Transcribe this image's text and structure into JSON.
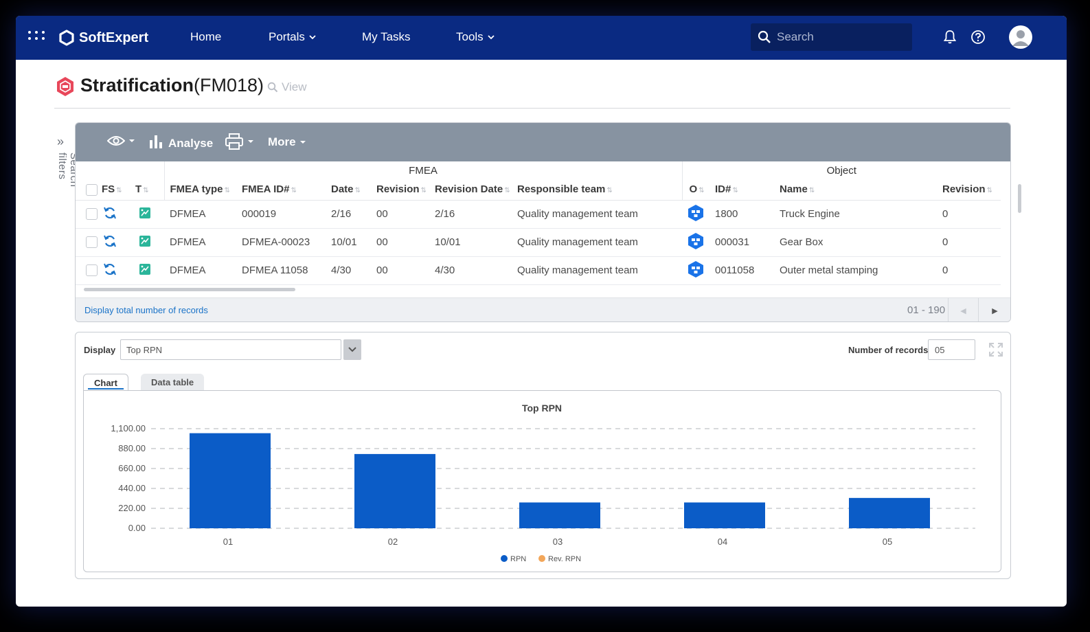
{
  "nav": {
    "logo": "SoftExpert",
    "items": [
      {
        "label": "Home"
      },
      {
        "label": "Portals"
      },
      {
        "label": "My Tasks"
      },
      {
        "label": "Tools"
      }
    ],
    "search_placeholder": "Search"
  },
  "header": {
    "title": "Stratification",
    "code": "(FM018)",
    "view_label": "View"
  },
  "side": {
    "search_filters": "Search filters"
  },
  "toolbar": {
    "analyse": "Analyse",
    "more": "More"
  },
  "grid": {
    "group_fmea": "FMEA",
    "group_object": "Object",
    "columns": [
      "FS",
      "T",
      "FMEA type",
      "FMEA ID#",
      "Date",
      "Revision",
      "Revision Date",
      "Responsible team",
      "O",
      "ID#",
      "Name",
      "Revision"
    ],
    "rows": [
      {
        "type": "DFMEA",
        "fmea_id": "000019",
        "date": "2/16",
        "revision": "00",
        "rev_date": "2/16",
        "team": "Quality management team",
        "obj_id": "1800",
        "name": "Truck Engine",
        "obj_rev": "0"
      },
      {
        "type": "DFMEA",
        "fmea_id": "DFMEA-00023",
        "date": "10/01",
        "revision": "00",
        "rev_date": "10/01",
        "team": "Quality management team",
        "obj_id": "000031",
        "name": "Gear Box",
        "obj_rev": "0"
      },
      {
        "type": "DFMEA",
        "fmea_id": "DFMEA 11058",
        "date": "4/30",
        "revision": "00",
        "rev_date": "4/30",
        "team": "Quality management team",
        "obj_id": "0011058",
        "name": "Outer metal stamping",
        "obj_rev": "0"
      }
    ],
    "total_link": "Display total number of records",
    "range": "01 - 190"
  },
  "chart_panel": {
    "display_label": "Display",
    "display_value": "Top RPN",
    "records_label": "Number of records",
    "records_value": "05",
    "tabs": [
      "Chart",
      "Data table"
    ]
  },
  "colors": {
    "nav": "#0a2a82",
    "rpn": "#0b5cc7",
    "rev_rpn": "#f2a65a"
  },
  "chart_data": {
    "type": "bar",
    "title": "Top RPN",
    "categories": [
      "01",
      "02",
      "03",
      "04",
      "05"
    ],
    "series": [
      {
        "name": "RPN",
        "values": [
          1050,
          820,
          285,
          285,
          335
        ]
      },
      {
        "name": "Rev. RPN",
        "values": [
          0,
          0,
          0,
          0,
          0
        ]
      }
    ],
    "ylim": [
      0,
      1100
    ],
    "yticks": [
      "0.00",
      "220.00",
      "440.00",
      "660.00",
      "880.00",
      "1,100.00"
    ],
    "grid": true,
    "legend": "bottom"
  }
}
